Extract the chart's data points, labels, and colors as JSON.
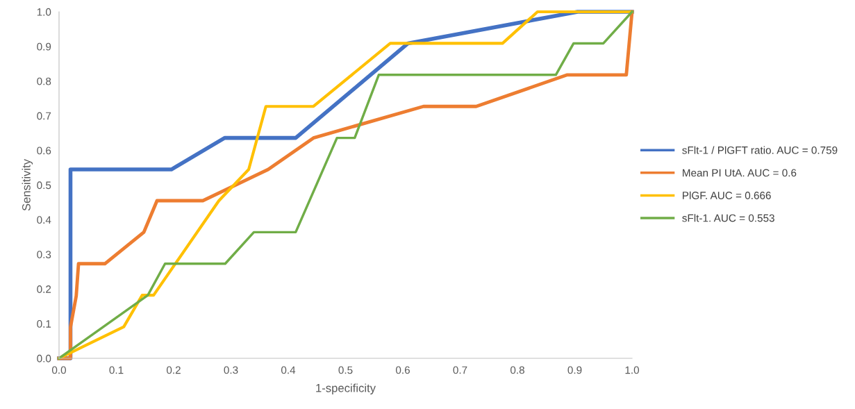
{
  "chart_data": {
    "type": "line",
    "xlabel": "1-specificity",
    "ylabel": "Sensitivity",
    "xlim": [
      0,
      1
    ],
    "ylim": [
      0,
      1
    ],
    "xticks": [
      {
        "value": 0,
        "label": "0.0"
      },
      {
        "value": 0.1,
        "label": "0.1"
      },
      {
        "value": 0.2,
        "label": "0.2"
      },
      {
        "value": 0.3,
        "label": "0.3"
      },
      {
        "value": 0.4,
        "label": "0.4"
      },
      {
        "value": 0.5,
        "label": "0.5"
      },
      {
        "value": 0.6,
        "label": "0.6"
      },
      {
        "value": 0.7,
        "label": "0.7"
      },
      {
        "value": 0.8,
        "label": "0.8"
      },
      {
        "value": 0.9,
        "label": "0.9"
      },
      {
        "value": 1,
        "label": "1.0"
      }
    ],
    "yticks": [
      {
        "value": 0,
        "label": "0.0"
      },
      {
        "value": 0.1,
        "label": "0.1"
      },
      {
        "value": 0.2,
        "label": "0.2"
      },
      {
        "value": 0.3,
        "label": "0.3"
      },
      {
        "value": 0.4,
        "label": "0.4"
      },
      {
        "value": 0.5,
        "label": "0.5"
      },
      {
        "value": 0.6,
        "label": "0.6"
      },
      {
        "value": 0.7,
        "label": "0.7"
      },
      {
        "value": 0.8,
        "label": "0.8"
      },
      {
        "value": 0.9,
        "label": "0.9"
      },
      {
        "value": 1,
        "label": "1.0"
      }
    ],
    "grid": false,
    "legend": "right",
    "marker": "none",
    "line_style": "solid",
    "series": [
      {
        "name": "sFlt-1 / PlGFT ratio. AUC = 0.759",
        "color": "#4472c4",
        "x": [
          0,
          0.02,
          0.02,
          0.196,
          0.289,
          0.413,
          0.609,
          0.905,
          1
        ],
        "values": [
          0,
          0,
          0.545,
          0.545,
          0.636,
          0.636,
          0.909,
          1,
          1
        ]
      },
      {
        "name": "Mean PI UtA. AUC = 0.6",
        "color": "#ed7d31",
        "x": [
          0,
          0.02,
          0.02,
          0.03,
          0.034,
          0.08,
          0.148,
          0.171,
          0.251,
          0.365,
          0.444,
          0.636,
          0.728,
          0.887,
          0.99,
          1
        ],
        "values": [
          0,
          0,
          0.09,
          0.18,
          0.273,
          0.273,
          0.364,
          0.455,
          0.455,
          0.545,
          0.636,
          0.727,
          0.727,
          0.818,
          0.818,
          1
        ]
      },
      {
        "name": "PlGF. AUC = 0.666",
        "color": "#ffc000",
        "x": [
          0,
          0.113,
          0.145,
          0.165,
          0.279,
          0.331,
          0.361,
          0.444,
          0.578,
          0.774,
          0.835,
          1
        ],
        "values": [
          0,
          0.091,
          0.182,
          0.182,
          0.455,
          0.545,
          0.727,
          0.727,
          0.909,
          0.909,
          1,
          1
        ]
      },
      {
        "name": "sFlt-1. AUC = 0.553",
        "color": "#70ad47",
        "x": [
          0,
          0.155,
          0.185,
          0.29,
          0.34,
          0.413,
          0.485,
          0.516,
          0.558,
          0.867,
          0.898,
          0.95,
          1
        ],
        "values": [
          0,
          0.182,
          0.273,
          0.273,
          0.364,
          0.364,
          0.636,
          0.636,
          0.818,
          0.818,
          0.909,
          0.909,
          1
        ]
      }
    ]
  }
}
